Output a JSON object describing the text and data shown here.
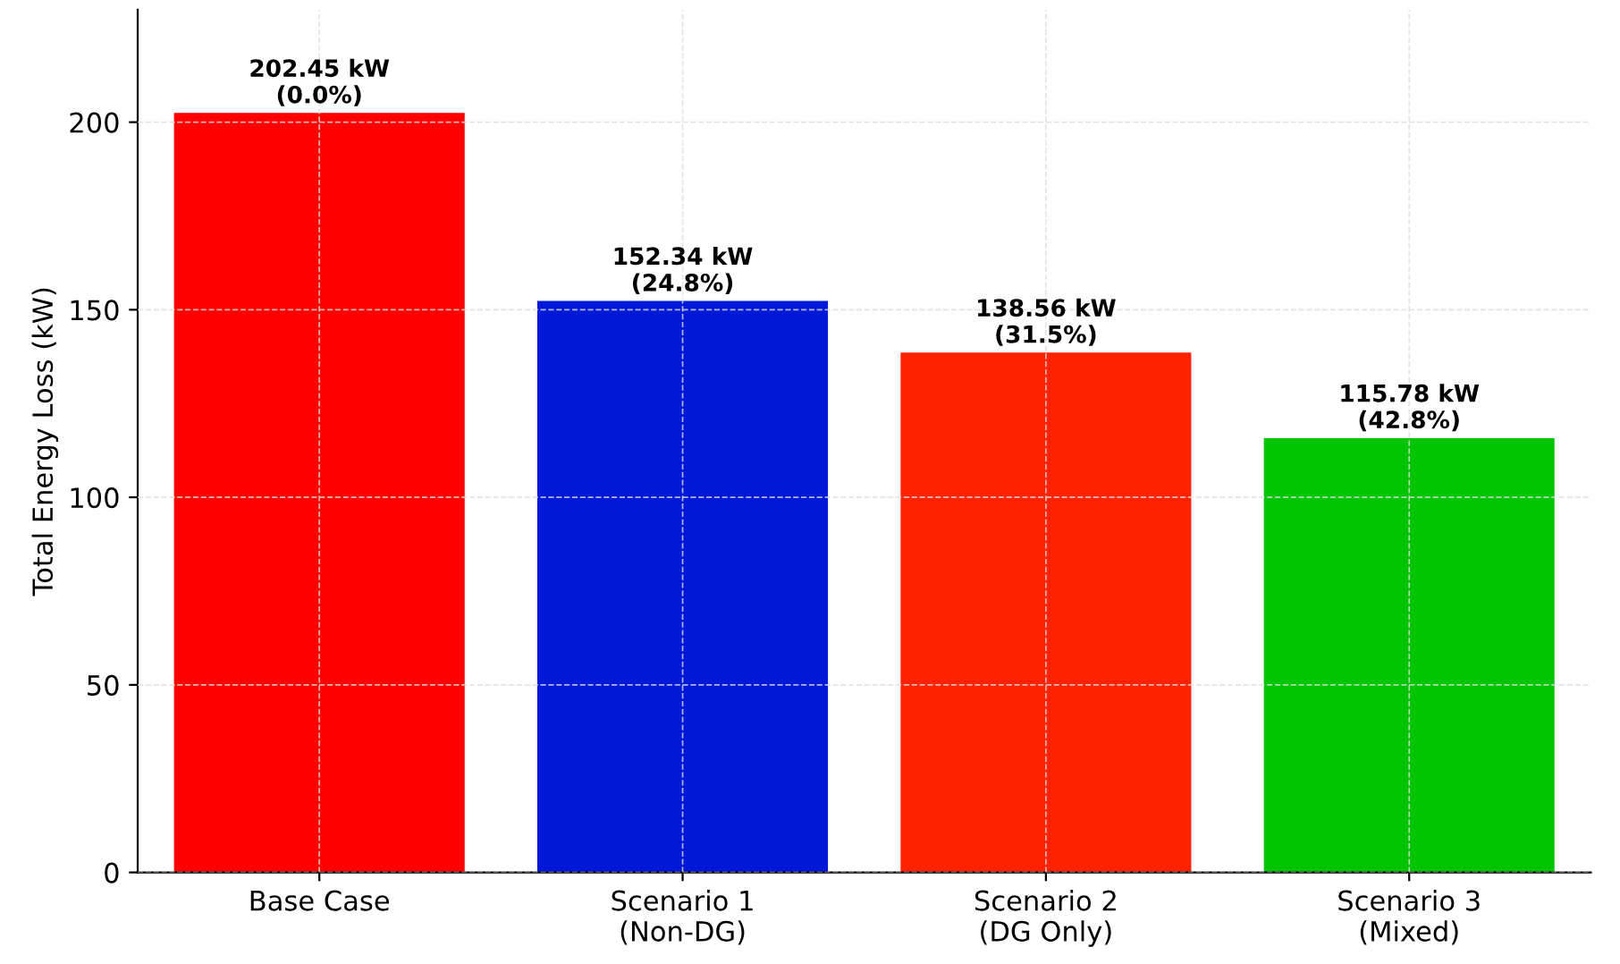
{
  "chart_data": {
    "type": "bar",
    "ylabel": "Total Energy Loss (kW)",
    "categories": [
      "Base Case",
      "Scenario 1\n(Non-DG)",
      "Scenario 2\n(DG Only)",
      "Scenario 3\n(Mixed)"
    ],
    "values": [
      202.45,
      152.34,
      138.56,
      115.78
    ],
    "colors": [
      "#ff0000",
      "#0019d9",
      "#ff2200",
      "#00c400"
    ],
    "value_labels": [
      "202.45 kW\n(0.0%)",
      "152.34 kW\n(24.8%)",
      "138.56 kW\n(31.5%)",
      "115.78 kW\n(42.8%)"
    ],
    "ylim": [
      0,
      230
    ],
    "yticks": [
      0,
      50,
      100,
      150,
      200
    ],
    "grid": true
  }
}
